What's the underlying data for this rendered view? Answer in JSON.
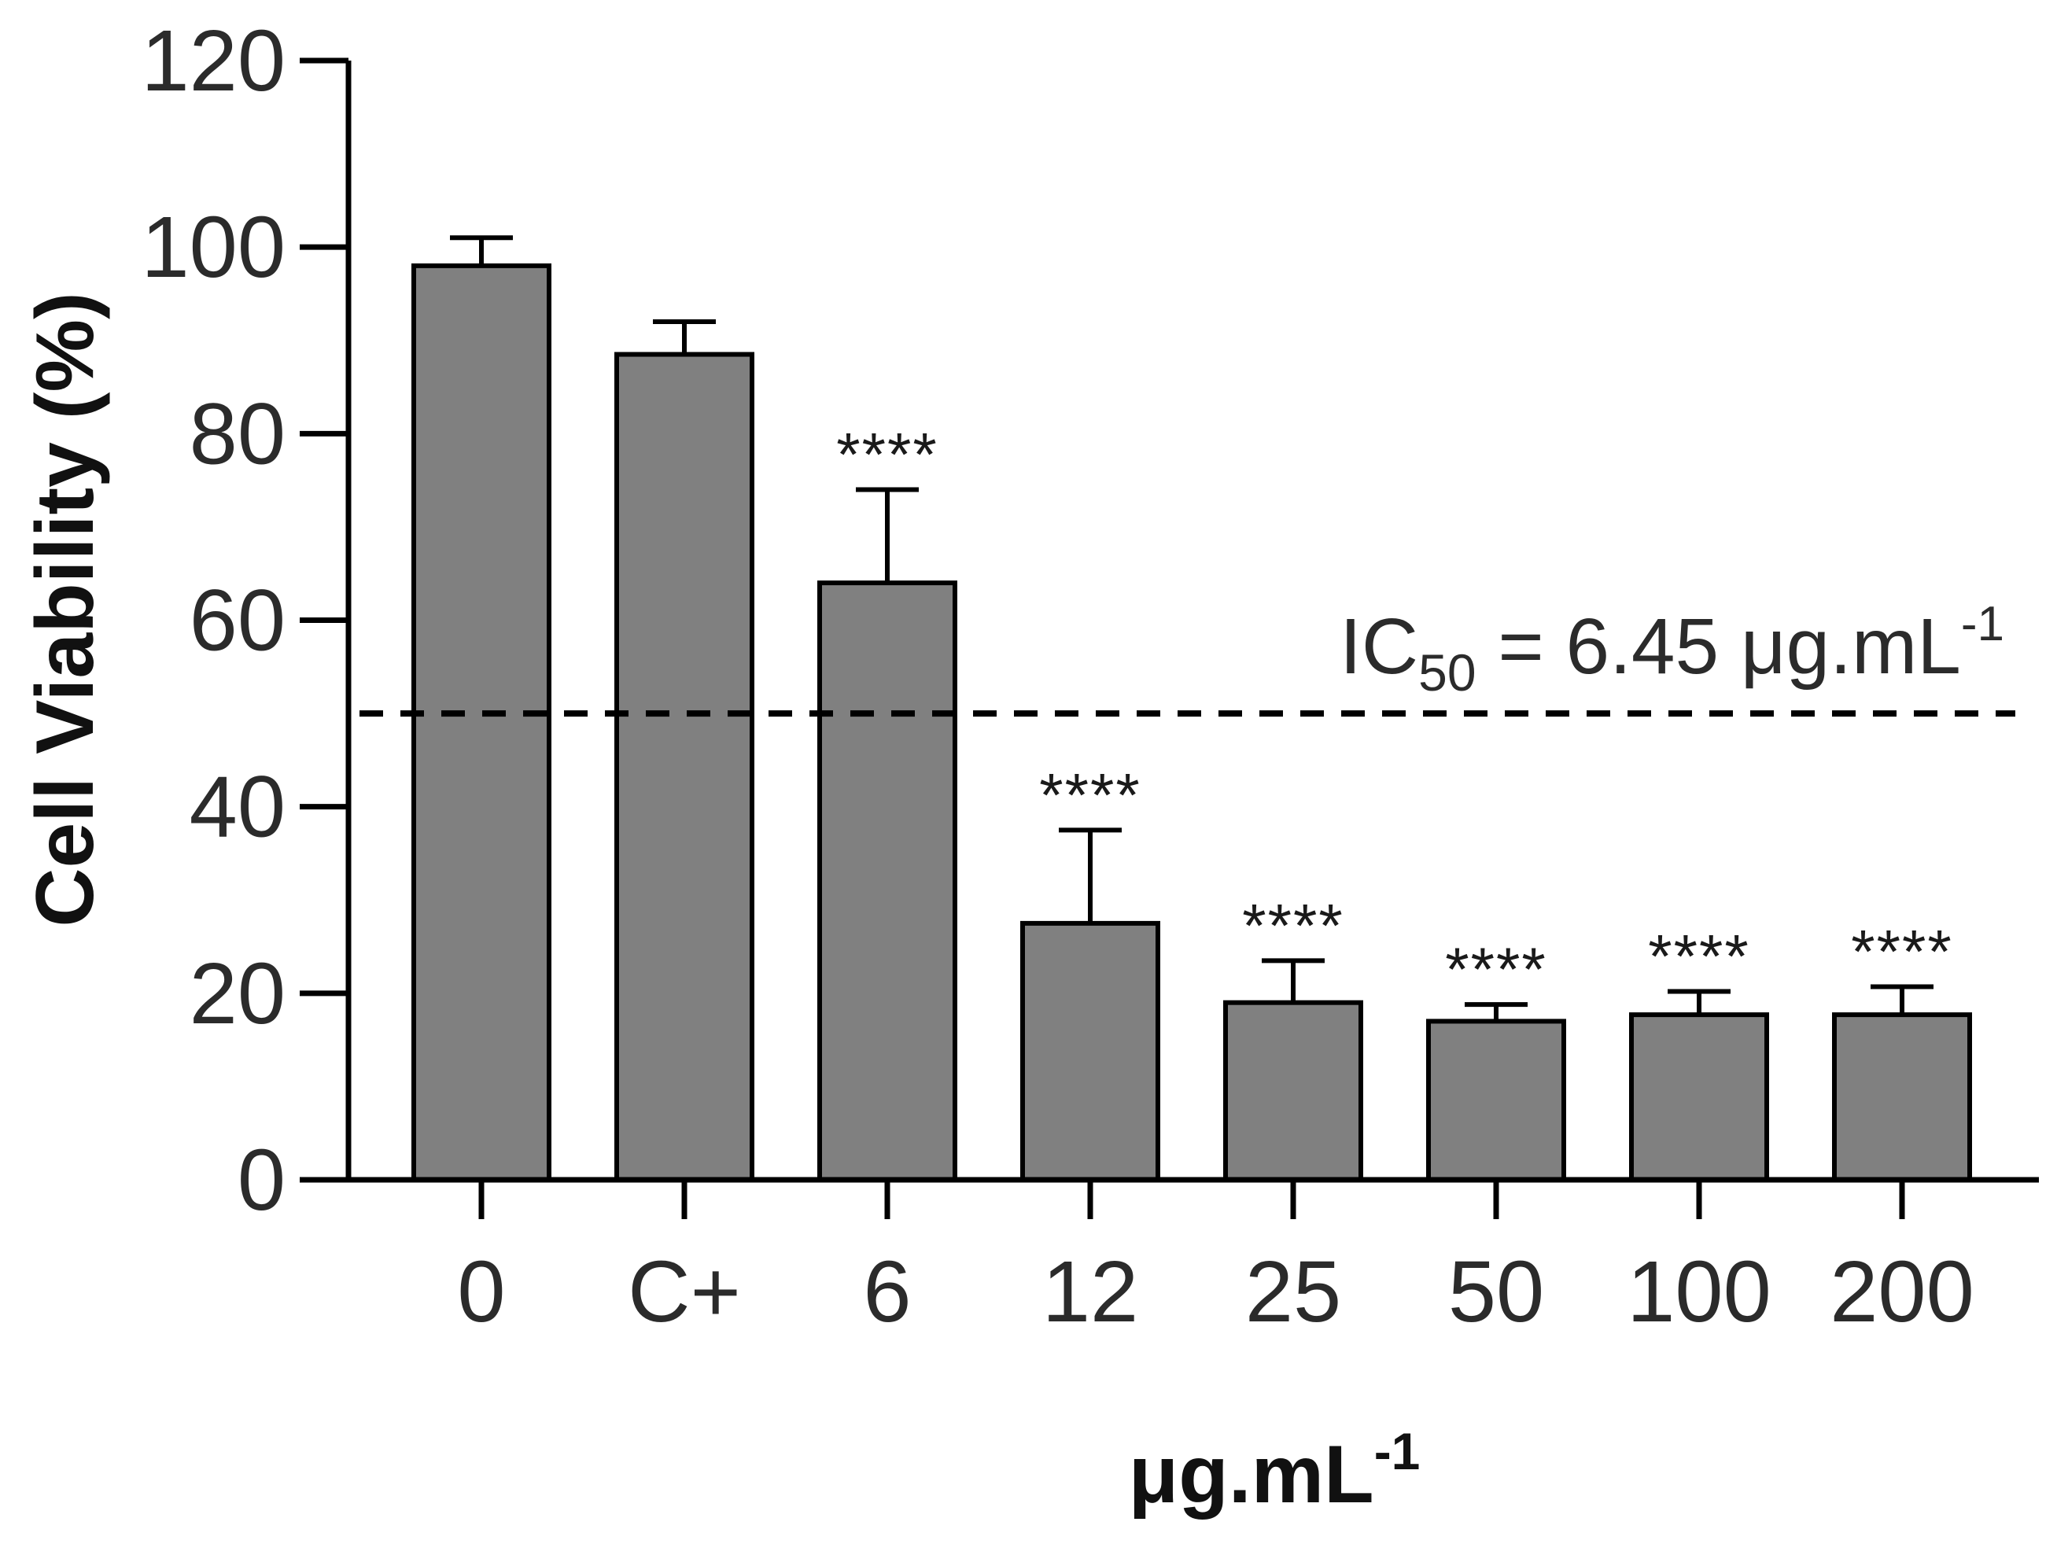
{
  "chart_data": {
    "type": "bar",
    "title": "",
    "xlabel": "μg.mL",
    "xlabel_sup": "-1",
    "ylabel": "Cell Viability (%)",
    "ylim": [
      0,
      120
    ],
    "yticks": [
      "0",
      "20",
      "40",
      "60",
      "80",
      "100",
      "120"
    ],
    "categories": [
      "0",
      "C+",
      "6",
      "12",
      "25",
      "50",
      "100",
      "200"
    ],
    "values": [
      98,
      88.5,
      64,
      27.5,
      19,
      17,
      17.7,
      17.7
    ],
    "errors": [
      3,
      3.5,
      10,
      10,
      4.5,
      1.8,
      2.5,
      3
    ],
    "significance": [
      "",
      "",
      "****",
      "****",
      "****",
      "****",
      "****",
      "****"
    ],
    "reference_line": {
      "y": 50,
      "style": "dashed",
      "label": {
        "prefix": "IC",
        "subscript": "50",
        "value": " = 6.45 μg.mL",
        "superscript": "-1"
      }
    },
    "colors": {
      "bar_fill": "#808080",
      "bar_stroke": "#000000",
      "axis": "#000000"
    }
  }
}
